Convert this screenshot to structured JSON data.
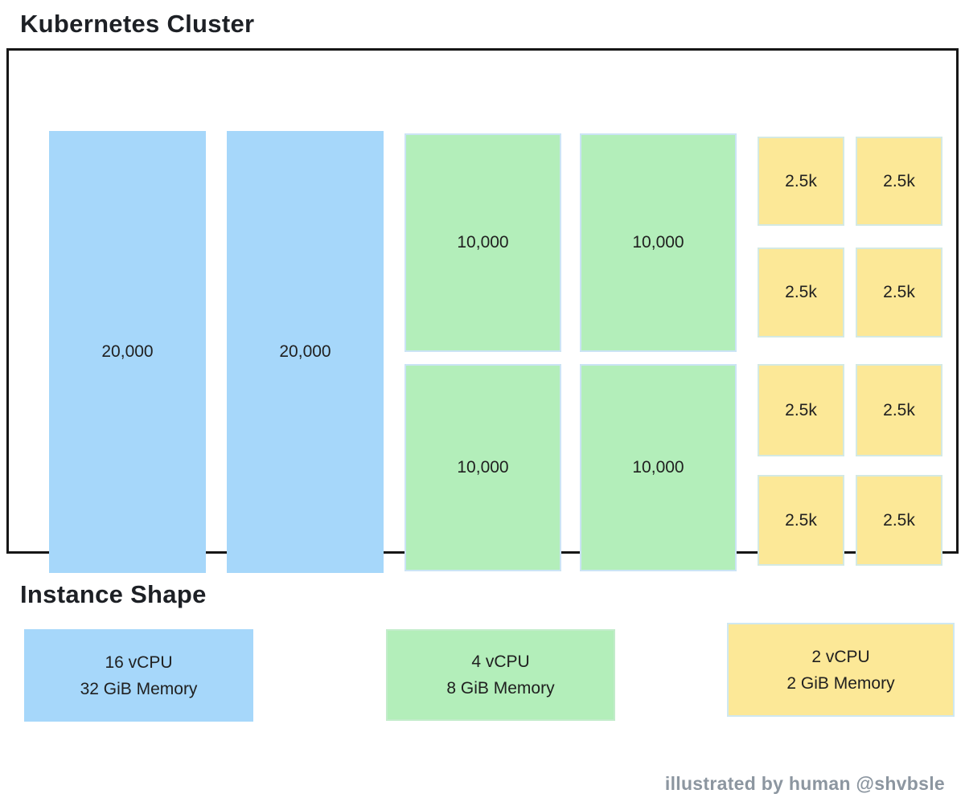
{
  "cluster": {
    "title": "Kubernetes Cluster",
    "large_nodes": [
      {
        "label": "20,000"
      },
      {
        "label": "20,000"
      }
    ],
    "medium_nodes": [
      {
        "label": "10,000"
      },
      {
        "label": "10,000"
      },
      {
        "label": "10,000"
      },
      {
        "label": "10,000"
      }
    ],
    "small_nodes": [
      {
        "label": "2.5k"
      },
      {
        "label": "2.5k"
      },
      {
        "label": "2.5k"
      },
      {
        "label": "2.5k"
      },
      {
        "label": "2.5k"
      },
      {
        "label": "2.5k"
      },
      {
        "label": "2.5k"
      },
      {
        "label": "2.5k"
      }
    ]
  },
  "legend": {
    "title": "Instance Shape",
    "items": [
      {
        "name": "large-instance",
        "line1": "16 vCPU",
        "line2": "32 GiB Memory",
        "color": "#a6d7fa"
      },
      {
        "name": "medium-instance",
        "line1": "4 vCPU",
        "line2": "8 GiB Memory",
        "color": "#b3eeba"
      },
      {
        "name": "small-instance",
        "line1": "2 vCPU",
        "line2": "2 GiB Memory",
        "color": "#fce897"
      }
    ]
  },
  "footer": {
    "attribution": "illustrated by human @shvbsle"
  },
  "colors": {
    "large_node_fill": "#a6d7fa",
    "medium_node_fill": "#b3eeba",
    "small_node_fill": "#fce897",
    "cluster_border": "#161616",
    "attribution_text": "#8c96a0"
  }
}
